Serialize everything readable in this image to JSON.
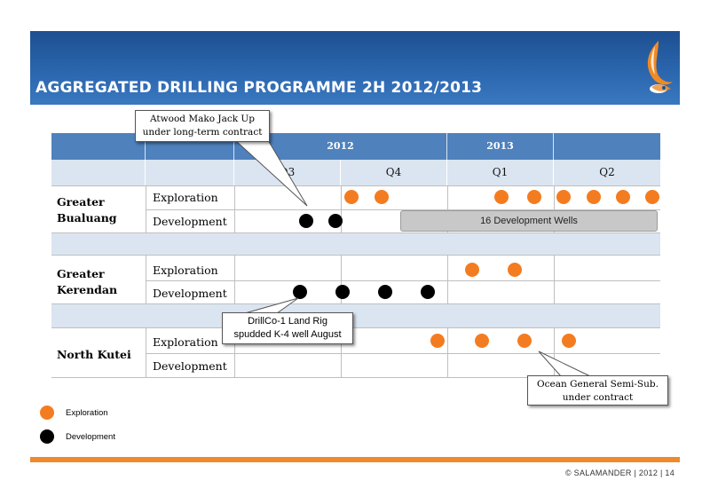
{
  "title": "AGGREGATED DRILLING PROGRAMME 2H 2012/2013",
  "years": [
    "2012",
    "2013"
  ],
  "quarters": [
    "Q3",
    "Q4",
    "Q1",
    "Q2"
  ],
  "regions": [
    {
      "name_line1": "Greater",
      "name_line2": "Bualuang"
    },
    {
      "name_line1": "Greater",
      "name_line2": "Kerendan"
    },
    {
      "name_line1": "North Kutei",
      "name_line2": ""
    }
  ],
  "row_labels": {
    "exploration": "Exploration",
    "development": "Development"
  },
  "dev_bar_label": "16 Development Wells",
  "callouts": {
    "atwood": {
      "line1": "Atwood Mako Jack Up",
      "line2": "under long-term contract"
    },
    "drillco": {
      "line1": "DrillCo-1 Land Rig",
      "line2": "spudded K-4 well August"
    },
    "ocean": {
      "line1": "Ocean General Semi-Sub.",
      "line2": "under contract"
    }
  },
  "legend": {
    "exploration": "Exploration",
    "development": "Development"
  },
  "footer": "© SALAMANDER  |  2012  |   14",
  "colors": {
    "header": "#4f81bd",
    "light": "#dbe5f1",
    "exploration": "#f47c20",
    "development": "#000000",
    "accent": "#ee8a2a"
  }
}
